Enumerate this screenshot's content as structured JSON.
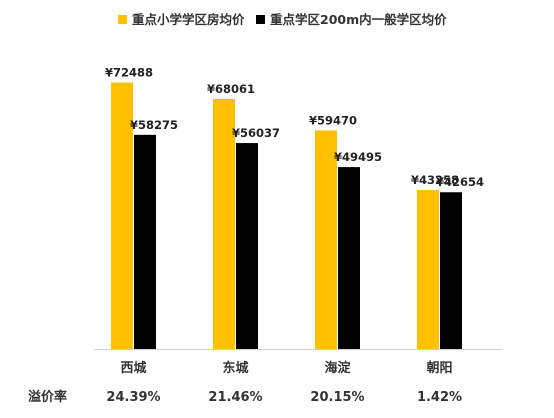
{
  "chart_data": {
    "type": "bar",
    "title": "",
    "xlabel": "",
    "ylabel": "",
    "categories": [
      "西城",
      "东城",
      "海淀",
      "朝阳"
    ],
    "series": [
      {
        "name": "重点小学学区房均价",
        "color": "#FFC000",
        "values": [
          72488,
          68061,
          59470,
          43258
        ],
        "labels": [
          "¥72488",
          "¥68061",
          "¥59470",
          "¥43258"
        ]
      },
      {
        "name": "重点学区200m内一般学区均价",
        "color": "#000000",
        "values": [
          58275,
          56037,
          49495,
          42654
        ],
        "labels": [
          "¥58275",
          "¥56037",
          "¥49495",
          "¥42654"
        ]
      }
    ],
    "ylim": [
      0,
      80000
    ],
    "legend_position": "top",
    "grid": false,
    "premium_row": {
      "label": "溢价率",
      "values": [
        "24.39%",
        "21.46%",
        "20.15%",
        "1.42%"
      ]
    }
  }
}
